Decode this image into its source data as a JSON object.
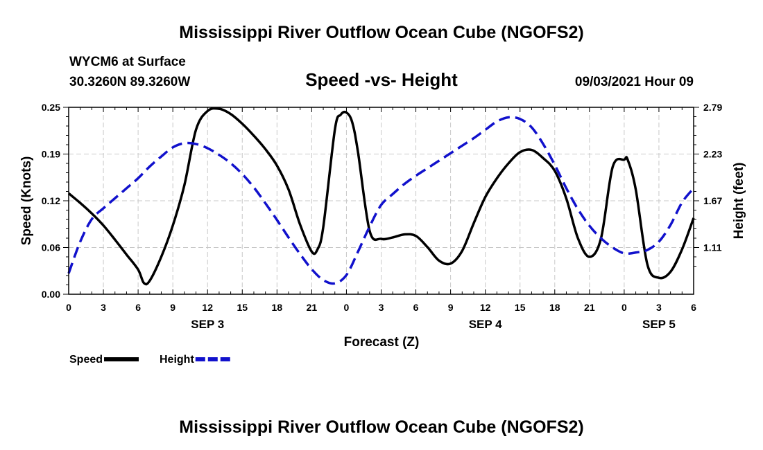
{
  "header": {
    "title_top": "Mississippi River Outflow Ocean Cube (NGOFS2)",
    "title_bottom": "Mississippi River Outflow Ocean Cube (NGOFS2)",
    "station": "WYCM6 at Surface",
    "coords": "30.3260N  89.3260W",
    "datetime": "09/03/2021 Hour 09"
  },
  "chart_data": {
    "type": "line",
    "title": "Speed -vs- Height",
    "xlabel": "Forecast (Z)",
    "ylabel": "Speed (Knots)",
    "y2label": "Height (feet)",
    "xlim": [
      0,
      54
    ],
    "ylim": [
      0,
      0.25
    ],
    "y2lim": [
      0.55,
      2.79
    ],
    "x_ticks": [
      0,
      3,
      6,
      9,
      12,
      15,
      18,
      21,
      24,
      27,
      30,
      33,
      36,
      39,
      42,
      45,
      48,
      51,
      54
    ],
    "x_tick_labels": [
      "0",
      "3",
      "6",
      "9",
      "12",
      "15",
      "18",
      "21",
      "0",
      "3",
      "6",
      "9",
      "12",
      "15",
      "18",
      "21",
      "0",
      "3",
      "6"
    ],
    "y_ticks": [
      0,
      0.0625,
      0.125,
      0.1875,
      0.25
    ],
    "y_tick_labels": [
      "0.00",
      "0.06",
      "0.12",
      "0.19",
      "0.25"
    ],
    "y2_ticks": [
      1.11,
      1.67,
      2.23,
      2.79
    ],
    "y2_tick_labels": [
      "1.11",
      "1.67",
      "2.23",
      "2.79"
    ],
    "day_labels": [
      {
        "label": "SEP 3",
        "x": 12
      },
      {
        "label": "SEP 4",
        "x": 36
      },
      {
        "label": "SEP 5",
        "x": 51
      }
    ],
    "series": [
      {
        "name": "Speed",
        "axis": "left",
        "color": "#000000",
        "dash": "solid",
        "x": [
          0,
          1,
          2,
          3,
          4,
          5,
          6,
          6.5,
          7,
          8,
          9,
          10,
          11,
          12,
          13,
          14,
          15,
          16,
          17,
          18,
          19,
          20,
          21,
          21.5,
          22,
          23,
          23.5,
          24,
          24.5,
          25,
          26,
          27,
          28,
          29,
          30,
          31,
          32,
          33,
          34,
          35,
          36,
          37,
          38,
          39,
          40,
          41,
          42,
          43,
          44,
          45,
          46,
          47,
          48,
          48.3,
          49,
          50,
          51,
          52,
          53,
          54
        ],
        "values": [
          0.135,
          0.122,
          0.108,
          0.092,
          0.073,
          0.053,
          0.033,
          0.015,
          0.018,
          0.05,
          0.092,
          0.146,
          0.22,
          0.245,
          0.248,
          0.241,
          0.228,
          0.212,
          0.194,
          0.172,
          0.14,
          0.093,
          0.057,
          0.06,
          0.09,
          0.22,
          0.24,
          0.243,
          0.23,
          0.19,
          0.085,
          0.074,
          0.076,
          0.08,
          0.078,
          0.063,
          0.045,
          0.041,
          0.058,
          0.095,
          0.13,
          0.155,
          0.175,
          0.19,
          0.193,
          0.182,
          0.165,
          0.128,
          0.075,
          0.05,
          0.075,
          0.17,
          0.18,
          0.18,
          0.14,
          0.04,
          0.022,
          0.03,
          0.06,
          0.102
        ]
      },
      {
        "name": "Height",
        "axis": "right",
        "color": "#1111cc",
        "dash": "dashed",
        "x": [
          0,
          1,
          2,
          3,
          4,
          5,
          6,
          7,
          8,
          9,
          10,
          11,
          12,
          13,
          14,
          15,
          16,
          17,
          18,
          19,
          20,
          21,
          22,
          23,
          24,
          25,
          26,
          27,
          28,
          29,
          30,
          31,
          32,
          33,
          34,
          35,
          36,
          37,
          38,
          39,
          40,
          41,
          42,
          43,
          44,
          45,
          46,
          47,
          48,
          49,
          50,
          51,
          52,
          53,
          54
        ],
        "values": [
          0.8,
          1.18,
          1.45,
          1.58,
          1.7,
          1.82,
          1.94,
          2.08,
          2.2,
          2.31,
          2.36,
          2.35,
          2.3,
          2.22,
          2.12,
          1.99,
          1.83,
          1.64,
          1.44,
          1.23,
          1.03,
          0.85,
          0.72,
          0.68,
          0.78,
          1.06,
          1.36,
          1.62,
          1.75,
          1.87,
          1.97,
          2.06,
          2.15,
          2.24,
          2.33,
          2.42,
          2.52,
          2.62,
          2.67,
          2.65,
          2.55,
          2.35,
          2.1,
          1.82,
          1.57,
          1.37,
          1.22,
          1.11,
          1.04,
          1.05,
          1.08,
          1.18,
          1.38,
          1.65,
          1.82
        ]
      }
    ],
    "legend": [
      {
        "label": "Speed",
        "color": "#000000",
        "dash": "solid"
      },
      {
        "label": "Height",
        "color": "#1111cc",
        "dash": "dashed"
      }
    ]
  }
}
